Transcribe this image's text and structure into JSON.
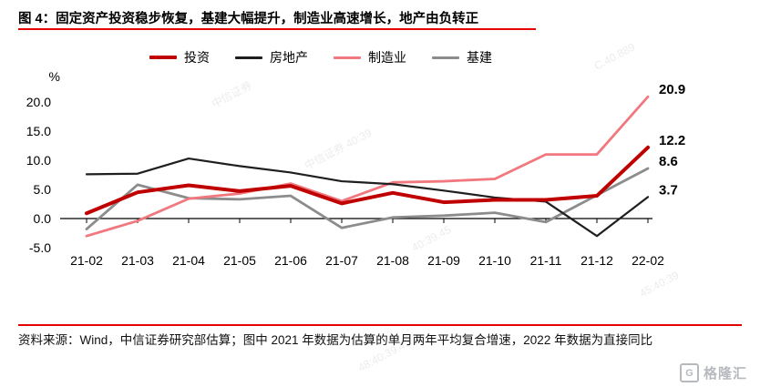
{
  "title": "图 4：固定资产投资稳步恢复，基建大幅提升，制造业高速增长，地产由负转正",
  "footer": {
    "source_note": "资料来源：Wind，中信证券研究部估算；图中 2021 年数据为估算的单月两年平均复合增速，2022 年数据为直接同比"
  },
  "logo": {
    "glyph": "G",
    "text": "格隆汇"
  },
  "watermarks": [
    "中信证券",
    "中信证券 40:39",
    "40:39.45",
    "C.40.889",
    "45:40:39",
    "48:40:39.45"
  ],
  "chart_data": {
    "type": "line",
    "title": "",
    "ylabel": "%",
    "xlabel": "",
    "grid": false,
    "legend_position": "top",
    "ylim": [
      -5,
      23
    ],
    "yticks": [
      "20.0",
      "15.0",
      "10.0",
      "5.0",
      "0.0",
      "-5.0"
    ],
    "ytick_values": [
      20,
      15,
      10,
      5,
      0,
      -5
    ],
    "categories": [
      "21-02",
      "21-03",
      "21-04",
      "21-05",
      "21-06",
      "21-07",
      "21-08",
      "21-09",
      "21-10",
      "21-11",
      "21-12",
      "22-02"
    ],
    "series": [
      {
        "name": "投资",
        "color": "#C00000",
        "width": 4,
        "end_label": "12.2",
        "values": [
          0.9,
          4.5,
          5.7,
          4.7,
          5.6,
          2.6,
          4.4,
          2.8,
          3.2,
          3.2,
          3.9,
          12.2
        ]
      },
      {
        "name": "房地产",
        "color": "#1F1F1F",
        "width": 2.2,
        "end_label": "3.7",
        "values": [
          7.6,
          7.7,
          10.3,
          9.0,
          7.9,
          6.4,
          5.9,
          4.8,
          3.6,
          2.9,
          -3.0,
          3.7
        ]
      },
      {
        "name": "制造业",
        "color": "#F0787E",
        "width": 2.8,
        "end_label": "20.9",
        "values": [
          -3.0,
          -0.4,
          3.4,
          4.3,
          6.0,
          3.0,
          6.2,
          6.4,
          6.8,
          11.0,
          11.0,
          20.9
        ]
      },
      {
        "name": "基建",
        "color": "#8C8C8C",
        "width": 2.8,
        "end_label": "8.6",
        "values": [
          -1.8,
          5.8,
          3.5,
          3.3,
          3.9,
          -1.6,
          0.2,
          0.5,
          1.0,
          -0.6,
          4.0,
          8.6
        ]
      }
    ]
  }
}
